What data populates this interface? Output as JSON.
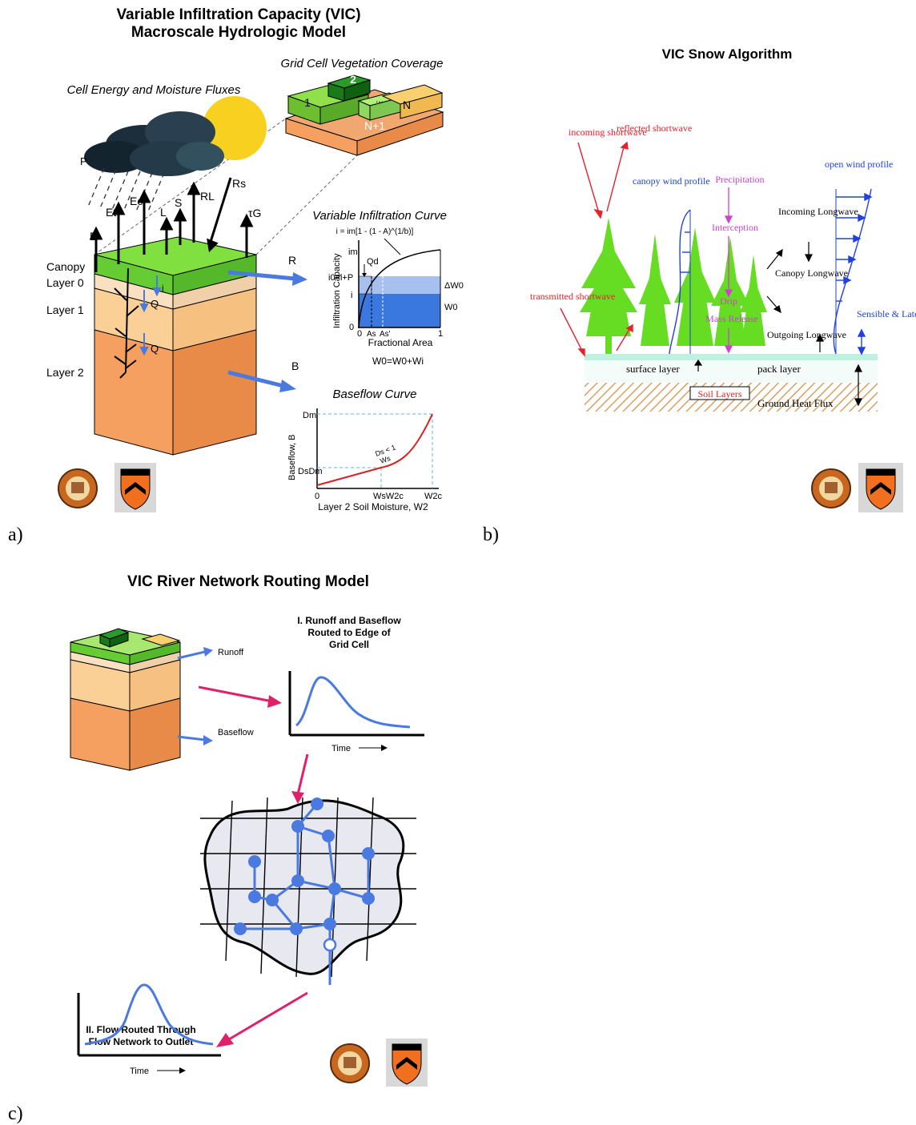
{
  "panels": [
    {
      "label": "a)"
    },
    {
      "label": "b)"
    },
    {
      "label": "c)"
    }
  ],
  "panel_a": {
    "title_line1": "Variable Infiltration Capacity (VIC)",
    "title_line2": "Macroscale Hydrologic Model",
    "grid_cell_title": "Grid Cell Vegetation Coverage",
    "fluxes_title": "Cell Energy and Moisture Fluxes",
    "tiles": [
      "2",
      "1",
      "...",
      "N",
      "N+1"
    ],
    "flux_labels": [
      "P",
      "E",
      "Et",
      "Ec",
      "L",
      "S",
      "RL",
      "Rs",
      "τG"
    ],
    "layer_labels": [
      "Canopy",
      "Layer 0",
      "Layer 1",
      "Layer 2"
    ],
    "layer_flux_labels": [
      "i",
      "Q",
      "Q"
    ],
    "runoff_label": "R",
    "baseflow_label": "B",
    "infiltration_title": "Variable Infiltration Curve",
    "infiltration_equation": "i = im[1 - (1 - A)^(1/b)]",
    "infiltration_ylabel": "Infiltration Capacity",
    "infiltration_xlabel": "Fractional Area",
    "infiltration_marks": [
      "im",
      "Qd",
      "i0=i+P",
      "i",
      "0",
      "0",
      "As",
      "As'",
      "1",
      "ΔW0",
      "W0"
    ],
    "infiltration_footer": "W0=W0+Wi",
    "baseflow_title": "Baseflow Curve",
    "baseflow_ylabel": "Baseflow, B",
    "baseflow_xlabel": "Layer 2 Soil Moisture, W2",
    "baseflow_marks": [
      "Dm",
      "DsDm",
      "0",
      "WsW2c",
      "W2c",
      "Ds < 1",
      "Ws"
    ]
  },
  "panel_b": {
    "title": "VIC Snow Algorithm",
    "labels": {
      "incoming_sw": "incoming shortwave",
      "reflected_sw": "reflected shortwave",
      "transmitted_sw": "transmitted shortwave",
      "canopy_wind": "canopy wind profile",
      "precip": "Precipitation",
      "interception": "Interception",
      "drip": "Drip",
      "mass_release": "Mass Release",
      "open_wind": "open wind profile",
      "incoming_lw": "Incoming Longwave",
      "canopy_lw": "Canopy Longwave",
      "outgoing_lw": "Outgoing Longwave",
      "sensible": "Sensible & Latent Heat",
      "surface_layer": "surface layer",
      "pack_layer": "pack layer",
      "soil_layers": "Soil Layers",
      "ground_heat": "Ground Heat Flux"
    },
    "colors": {
      "red": "#e8202a",
      "blue": "#2040e0",
      "magenta": "#d040d0",
      "tree": "#66dd22",
      "snow": "#bff0e0"
    }
  },
  "panel_c": {
    "title": "VIC River Network Routing Model",
    "runoff": "Runoff",
    "baseflow": "Baseflow",
    "step1": [
      "I. Runoff and Baseflow",
      "Routed to Edge of",
      "Grid Cell"
    ],
    "time1": "Time",
    "step2": [
      "II. Flow Routed Through",
      "Flow Network to Outlet"
    ],
    "time2": "Time"
  }
}
